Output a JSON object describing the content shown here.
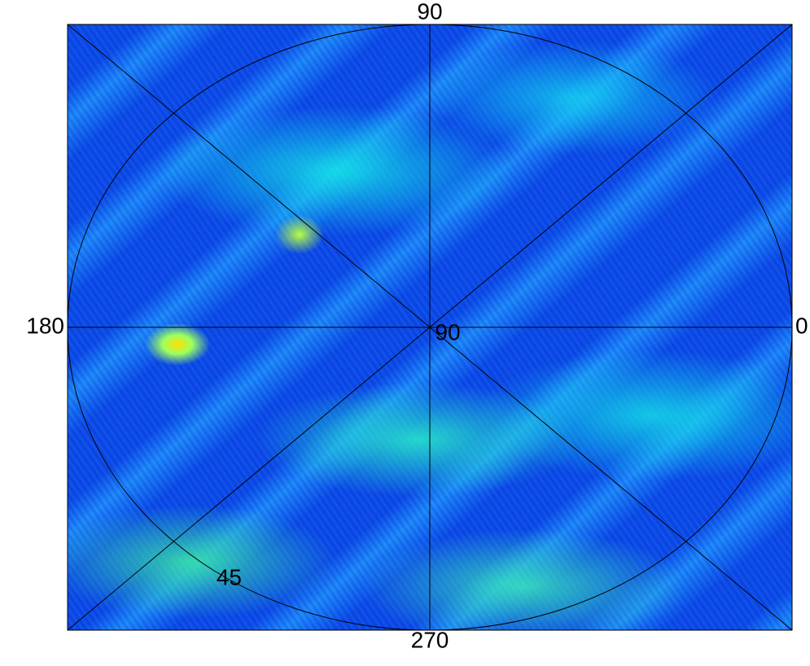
{
  "chart_data": {
    "type": "polar",
    "thetaticks": [
      0,
      90,
      180,
      270
    ],
    "thetagrid": [
      0,
      45,
      90,
      135,
      180,
      225,
      270,
      315
    ],
    "rlim": [
      90,
      45
    ],
    "rticks": [
      90,
      45
    ]
  }
}
